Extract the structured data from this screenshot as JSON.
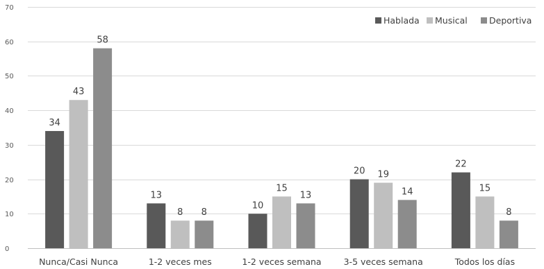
{
  "chart_data": {
    "type": "bar",
    "categories": [
      "Nunca/Casi Nunca",
      "1-2 veces mes",
      "1-2 veces semana",
      "3-5 veces semana",
      "Todos los días"
    ],
    "series": [
      {
        "name": "Hablada",
        "values": [
          34,
          13,
          10,
          20,
          22
        ],
        "color": "#595959"
      },
      {
        "name": "Musical",
        "values": [
          43,
          8,
          15,
          19,
          15
        ],
        "color": "#bfbfbf"
      },
      {
        "name": "Deportiva",
        "values": [
          58,
          8,
          13,
          14,
          8
        ],
        "color": "#8c8c8c"
      }
    ],
    "ylim": [
      0,
      70
    ],
    "yticks": [
      0,
      10,
      20,
      30,
      40,
      50,
      60,
      70
    ],
    "grid": true,
    "legend_position": "top-right",
    "data_labels": true
  }
}
